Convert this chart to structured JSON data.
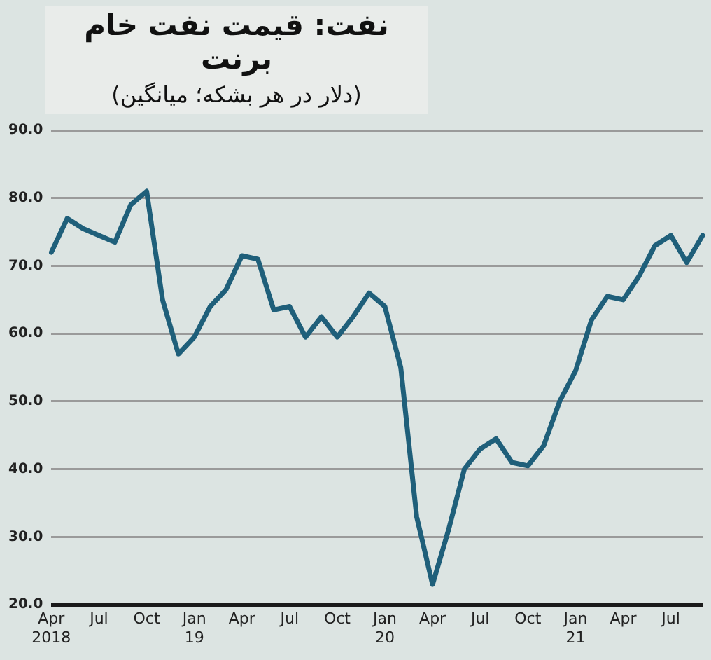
{
  "chart_data": {
    "type": "line",
    "title": "نفت: قیمت نفت خام برنت",
    "subtitle": "(دلار در هر بشکه؛ میانگین)",
    "categories": [
      "Apr 2018",
      null,
      null,
      "Jul",
      null,
      null,
      "Oct",
      null,
      null,
      "Jan 19",
      null,
      null,
      "Apr",
      null,
      null,
      "Jul",
      null,
      null,
      "Oct",
      null,
      null,
      "Jan 20",
      null,
      null,
      "Apr",
      null,
      null,
      "Jul",
      null,
      null,
      "Oct",
      null,
      null,
      "Jan 21",
      null,
      null,
      "Apr",
      null,
      null,
      "Jul",
      null,
      null
    ],
    "series": [
      {
        "color": "#1f5f7a",
        "values": [
          72,
          77,
          75.5,
          74.5,
          73.5,
          79,
          81,
          65,
          57,
          59.5,
          64,
          66.5,
          71.5,
          71,
          63.5,
          64,
          59.5,
          62.5,
          59.5,
          62.5,
          66,
          64,
          55,
          33,
          23,
          31,
          40,
          43,
          44.5,
          41,
          40.5,
          43.5,
          50,
          54.5,
          62,
          65.5,
          65,
          68.5,
          73,
          74.5,
          70.5,
          74.5
        ]
      }
    ],
    "ylim": [
      20,
      90
    ],
    "yticks": [
      {
        "value": 20,
        "label": "20.0"
      },
      {
        "value": 30,
        "label": "30.0"
      },
      {
        "value": 40,
        "label": "40.0"
      },
      {
        "value": 50,
        "label": "50.0"
      },
      {
        "value": 60,
        "label": "60.0"
      },
      {
        "value": 70,
        "label": "70.0"
      },
      {
        "value": 80,
        "label": "80.0"
      },
      {
        "value": 90,
        "label": "90.0"
      }
    ],
    "grid": "y",
    "legend": false,
    "marker": "none",
    "line_style": "solid"
  }
}
